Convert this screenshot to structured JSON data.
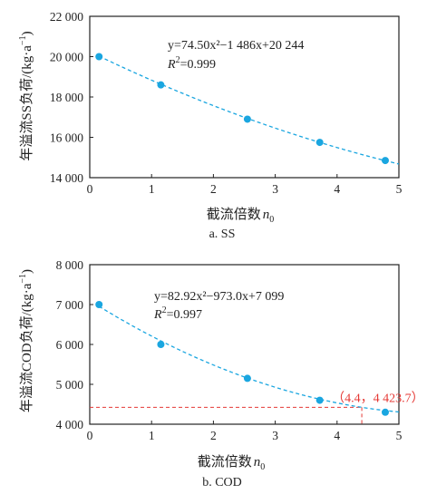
{
  "colors": {
    "point": "#1aa6e0",
    "curve": "#1aa6e0",
    "annotation": "#e53935",
    "axis": "#222222"
  },
  "chart_data": [
    {
      "type": "scatter",
      "title": "",
      "caption": "a. SS",
      "xlabel": "截流倍数",
      "xlabel_var": "n",
      "xlabel_sub": "0",
      "ylabel_prefix": "年溢流SS负荷/(kg·a",
      "ylabel_sup": "−1",
      "ylabel_suffix": ")",
      "xlim": [
        0,
        5
      ],
      "ylim": [
        14000,
        22000
      ],
      "x_ticks": [
        0,
        1,
        2,
        3,
        4,
        5
      ],
      "x_tick_labels": [
        "0",
        "1",
        "2",
        "3",
        "4",
        "5"
      ],
      "y_ticks": [
        14000,
        16000,
        18000,
        20000,
        22000
      ],
      "y_tick_labels": [
        "14 000",
        "16 000",
        "18 000",
        "20 000",
        "22 000"
      ],
      "x": [
        0.15,
        1.15,
        2.55,
        3.72,
        4.78
      ],
      "y": [
        20000,
        18600,
        16900,
        15750,
        14850
      ],
      "fit": {
        "a": 74.5,
        "b": -1486,
        "c": 20244,
        "x_range": [
          0.15,
          5.0
        ]
      },
      "equation": {
        "line1": "y=74.50x²−1 486x+20 244",
        "line2_prefix": "R",
        "line2_sup": "2",
        "line2_value": "=0.999"
      },
      "grid": false
    },
    {
      "type": "scatter",
      "title": "",
      "caption": "b. COD",
      "xlabel": "截流倍数",
      "xlabel_var": "n",
      "xlabel_sub": "0",
      "ylabel_prefix": "年溢流COD负荷/(kg·a",
      "ylabel_sup": "−1",
      "ylabel_suffix": ")",
      "xlim": [
        0,
        5
      ],
      "ylim": [
        4000,
        8000
      ],
      "x_ticks": [
        0,
        1,
        2,
        3,
        4,
        5
      ],
      "x_tick_labels": [
        "0",
        "1",
        "2",
        "3",
        "4",
        "5"
      ],
      "y_ticks": [
        4000,
        5000,
        6000,
        7000,
        8000
      ],
      "y_tick_labels": [
        "4 000",
        "5 000",
        "6 000",
        "7 000",
        "8 000"
      ],
      "x": [
        0.15,
        1.15,
        2.55,
        3.72,
        4.78
      ],
      "y": [
        7000,
        6000,
        5150,
        4600,
        4300
      ],
      "fit": {
        "a": 82.92,
        "b": -973.0,
        "c": 7099,
        "x_range": [
          0.15,
          5.0
        ]
      },
      "equation": {
        "line1": "y=82.92x²−973.0x+7 099",
        "line2_prefix": "R",
        "line2_sup": "2",
        "line2_value": "=0.997"
      },
      "annotation": {
        "x": 4.4,
        "y": 4423.7,
        "label": "（4.4，4 423.7）"
      },
      "grid": false
    }
  ]
}
